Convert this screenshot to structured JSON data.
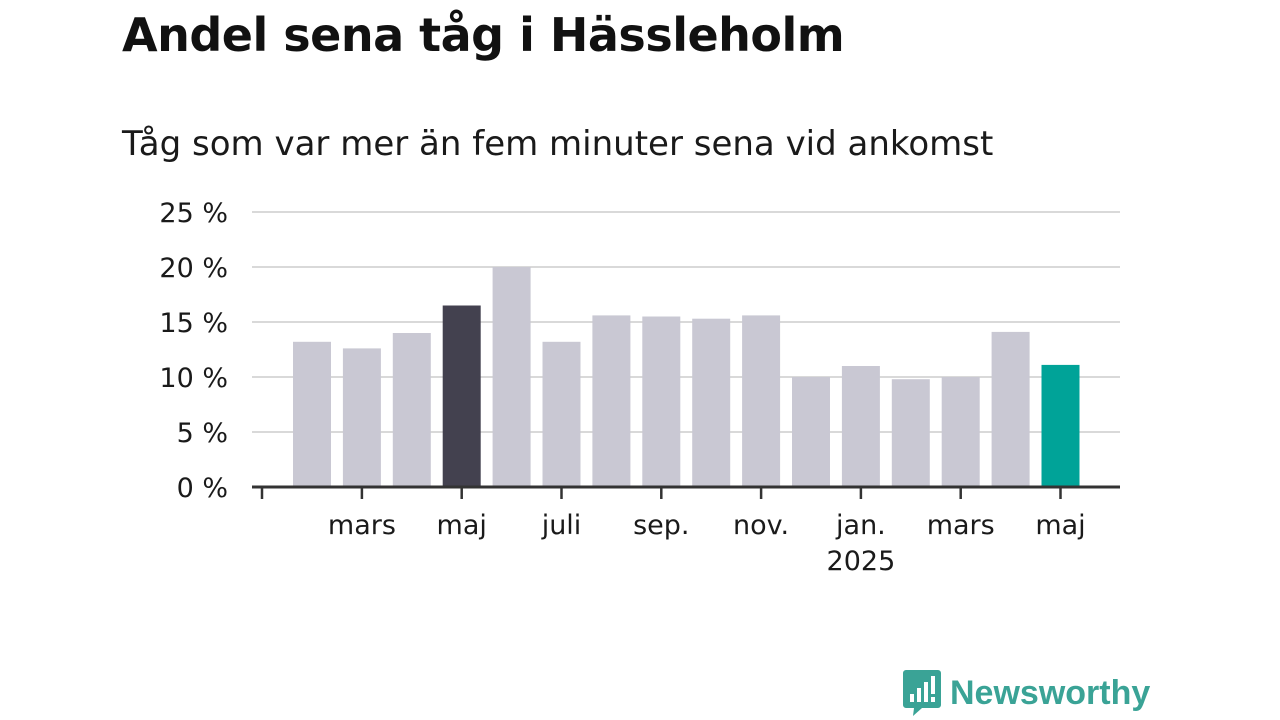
{
  "title": "Andel sena tåg i Hässleholm",
  "subtitle": "Tåg som var mer än fem minuter sena vid ankomst",
  "brand": "Newsworthy",
  "colors": {
    "bar": "#c9c8d3",
    "highlight_dark": "#43414f",
    "highlight_accent": "#00a398",
    "grid": "#d9d9d9",
    "axis": "#333333",
    "brand": "#3aa396"
  },
  "chart_data": {
    "type": "bar",
    "y_tick_labels": [
      "0 %",
      "5 %",
      "10 %",
      "15 %",
      "20 %",
      "25 %"
    ],
    "ylim": [
      0,
      25
    ],
    "grid": true,
    "values": [
      13.2,
      12.6,
      14.0,
      16.5,
      20.0,
      13.2,
      15.6,
      15.5,
      15.3,
      15.6,
      10.0,
      11.0,
      9.8,
      10.0,
      14.1,
      11.1
    ],
    "highlight": {
      "3": "dark",
      "15": "accent"
    },
    "x_tick_labels": [
      {
        "bar": 1,
        "label": "mars"
      },
      {
        "bar": 3,
        "label": "maj"
      },
      {
        "bar": 5,
        "label": "juli"
      },
      {
        "bar": 7,
        "label": "sep."
      },
      {
        "bar": 9,
        "label": "nov."
      },
      {
        "bar": 11,
        "label": "jan.",
        "sublabel": "2025"
      },
      {
        "bar": 13,
        "label": "mars"
      },
      {
        "bar": 15,
        "label": "maj"
      }
    ]
  }
}
